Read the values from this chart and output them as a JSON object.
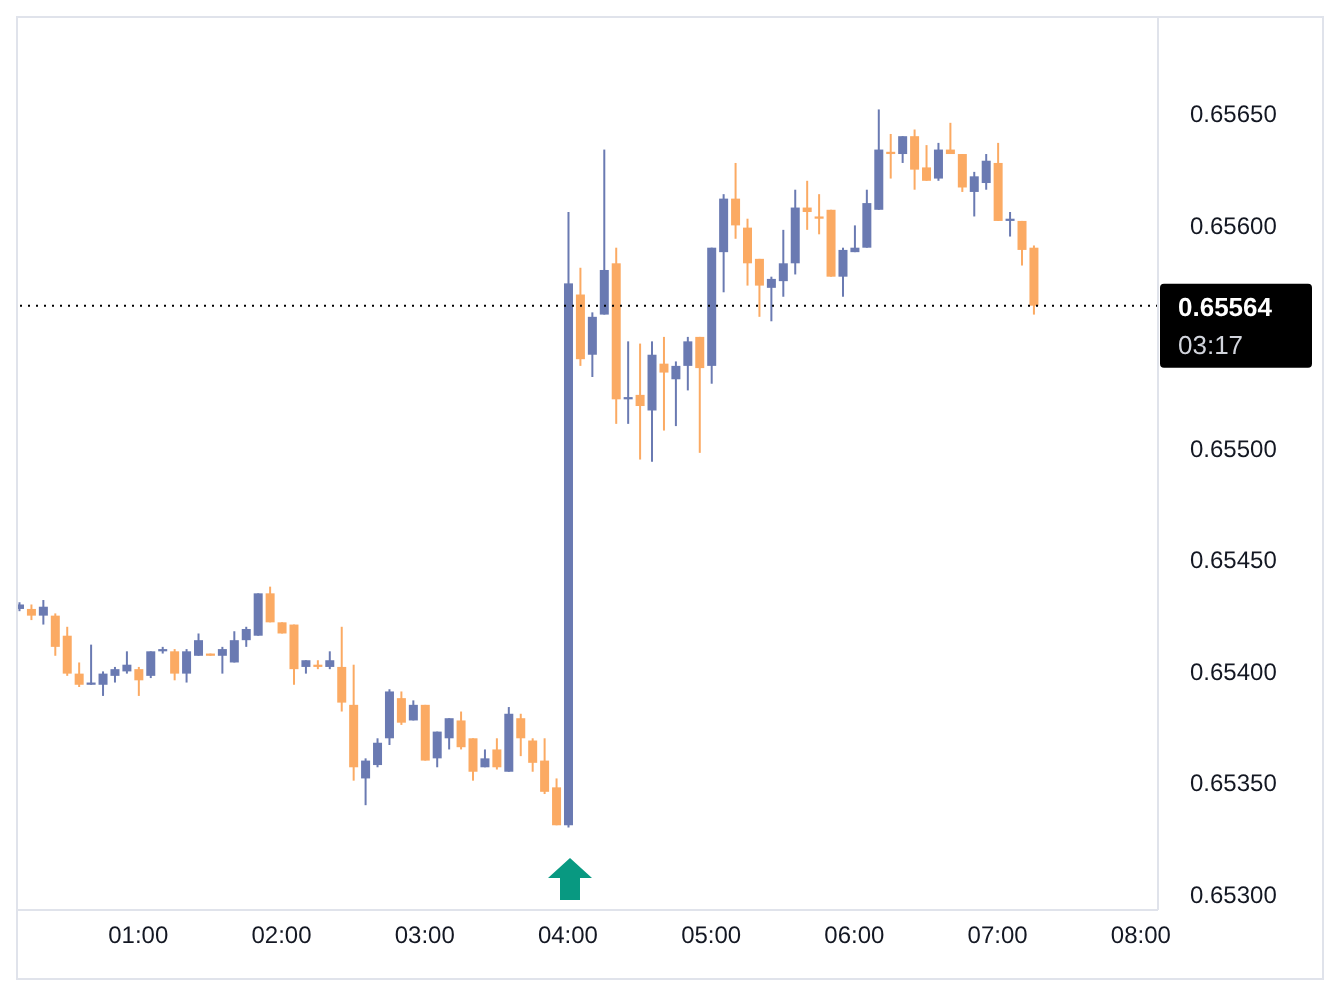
{
  "chart_data": {
    "type": "candlestick",
    "x": [
      0.1667,
      0.25,
      0.3333,
      0.4167,
      0.5,
      0.5833,
      0.6667,
      0.75,
      0.8333,
      0.9167,
      1,
      1.0833,
      1.1667,
      1.25,
      1.3333,
      1.4167,
      1.5,
      1.5833,
      1.6667,
      1.75,
      1.8333,
      1.9167,
      2,
      2.0833,
      2.1667,
      2.25,
      2.3333,
      2.4167,
      2.5,
      2.5833,
      2.6667,
      2.75,
      2.8333,
      2.9167,
      3,
      3.0833,
      3.1667,
      3.25,
      3.3333,
      3.4167,
      3.5,
      3.5833,
      3.6667,
      3.75,
      3.8333,
      3.9167,
      4,
      4.0833,
      4.1667,
      4.25,
      4.3333,
      4.4167,
      4.5,
      4.5833,
      4.6667,
      4.75,
      4.8333,
      4.9167,
      5,
      5.0833,
      5.1667,
      5.25,
      5.3333,
      5.4167,
      5.5,
      5.5833,
      5.6667,
      5.75,
      5.8333,
      5.9167,
      6,
      6.0833,
      6.1667,
      6.25,
      6.3333,
      6.4167,
      6.5,
      6.5833,
      6.6667,
      6.75,
      6.8333,
      6.9167,
      7,
      7.0833,
      7.1667,
      7.25
    ],
    "ohlc": [
      [
        0.65428,
        0.65431,
        0.65427,
        0.6543
      ],
      [
        0.65428,
        0.6543,
        0.65423,
        0.65425
      ],
      [
        0.65425,
        0.65432,
        0.65421,
        0.65429
      ],
      [
        0.65425,
        0.65426,
        0.65407,
        0.65411
      ],
      [
        0.65416,
        0.6542,
        0.65398,
        0.65399
      ],
      [
        0.65399,
        0.65404,
        0.65393,
        0.65394
      ],
      [
        0.65394,
        0.65412,
        0.65394,
        0.65395
      ],
      [
        0.65394,
        0.654,
        0.65389,
        0.65399
      ],
      [
        0.65398,
        0.65402,
        0.65395,
        0.65401
      ],
      [
        0.654,
        0.65409,
        0.65399,
        0.65403
      ],
      [
        0.65401,
        0.65402,
        0.65389,
        0.65396
      ],
      [
        0.65398,
        0.65409,
        0.65397,
        0.65409
      ],
      [
        0.65409,
        0.65411,
        0.65408,
        0.6541
      ],
      [
        0.65409,
        0.6541,
        0.65396,
        0.65399
      ],
      [
        0.65399,
        0.6541,
        0.65395,
        0.65409
      ],
      [
        0.65407,
        0.65417,
        0.65407,
        0.65414
      ],
      [
        0.65408,
        0.65408,
        0.65407,
        0.65407
      ],
      [
        0.65407,
        0.65411,
        0.65399,
        0.6541
      ],
      [
        0.65404,
        0.65418,
        0.65404,
        0.65414
      ],
      [
        0.65414,
        0.6542,
        0.65411,
        0.65419
      ],
      [
        0.65416,
        0.65435,
        0.65416,
        0.65435
      ],
      [
        0.65435,
        0.65438,
        0.65422,
        0.65422
      ],
      [
        0.65422,
        0.65422,
        0.65417,
        0.65417
      ],
      [
        0.65421,
        0.65421,
        0.65394,
        0.65401
      ],
      [
        0.65402,
        0.65405,
        0.65399,
        0.65405
      ],
      [
        0.65403,
        0.65405,
        0.65401,
        0.65402
      ],
      [
        0.65402,
        0.65409,
        0.65401,
        0.65405
      ],
      [
        0.65402,
        0.6542,
        0.65382,
        0.65386
      ],
      [
        0.65385,
        0.65403,
        0.65351,
        0.65357
      ],
      [
        0.65352,
        0.65361,
        0.6534,
        0.6536
      ],
      [
        0.65358,
        0.6537,
        0.65357,
        0.65368
      ],
      [
        0.6537,
        0.65392,
        0.65367,
        0.65391
      ],
      [
        0.65388,
        0.65391,
        0.65376,
        0.65377
      ],
      [
        0.65378,
        0.65387,
        0.65378,
        0.65385
      ],
      [
        0.65385,
        0.65385,
        0.6536,
        0.6536
      ],
      [
        0.65361,
        0.65373,
        0.65357,
        0.65373
      ],
      [
        0.6537,
        0.65379,
        0.65365,
        0.65379
      ],
      [
        0.65378,
        0.65382,
        0.65365,
        0.65366
      ],
      [
        0.6537,
        0.6537,
        0.65351,
        0.65355
      ],
      [
        0.65357,
        0.65365,
        0.65357,
        0.65361
      ],
      [
        0.65365,
        0.6537,
        0.65356,
        0.65357
      ],
      [
        0.65355,
        0.65384,
        0.65355,
        0.65381
      ],
      [
        0.65379,
        0.65381,
        0.65362,
        0.6537
      ],
      [
        0.65369,
        0.6537,
        0.65355,
        0.65359
      ],
      [
        0.6536,
        0.6537,
        0.65345,
        0.65346
      ],
      [
        0.65348,
        0.65352,
        0.65331,
        0.65331
      ],
      [
        0.65331,
        0.65606,
        0.6533,
        0.65574
      ],
      [
        0.65569,
        0.65581,
        0.65537,
        0.6554
      ],
      [
        0.65542,
        0.65561,
        0.65532,
        0.65559
      ],
      [
        0.6556,
        0.65634,
        0.6556,
        0.6558
      ],
      [
        0.65583,
        0.6559,
        0.65511,
        0.65522
      ],
      [
        0.65522,
        0.65548,
        0.65511,
        0.65523
      ],
      [
        0.65524,
        0.65547,
        0.65495,
        0.65519
      ],
      [
        0.65517,
        0.65548,
        0.65494,
        0.65542
      ],
      [
        0.65538,
        0.6555,
        0.65508,
        0.65534
      ],
      [
        0.65531,
        0.65539,
        0.6551,
        0.65537
      ],
      [
        0.65537,
        0.6555,
        0.65526,
        0.65548
      ],
      [
        0.6555,
        0.6555,
        0.65498,
        0.65536
      ],
      [
        0.65537,
        0.6559,
        0.65529,
        0.6559
      ],
      [
        0.65588,
        0.65614,
        0.6557,
        0.65612
      ],
      [
        0.65612,
        0.65628,
        0.65594,
        0.656
      ],
      [
        0.65599,
        0.65603,
        0.65573,
        0.65583
      ],
      [
        0.65585,
        0.65585,
        0.65559,
        0.65573
      ],
      [
        0.65572,
        0.65577,
        0.65557,
        0.65576
      ],
      [
        0.65575,
        0.65598,
        0.65568,
        0.65583
      ],
      [
        0.65583,
        0.65616,
        0.65578,
        0.65608
      ],
      [
        0.65608,
        0.6562,
        0.65598,
        0.65606
      ],
      [
        0.65604,
        0.65614,
        0.65596,
        0.65603
      ],
      [
        0.65607,
        0.65607,
        0.65577,
        0.65577
      ],
      [
        0.65577,
        0.6559,
        0.65568,
        0.65589
      ],
      [
        0.65588,
        0.656,
        0.65588,
        0.6559
      ],
      [
        0.6559,
        0.65616,
        0.6559,
        0.6561
      ],
      [
        0.65607,
        0.65652,
        0.65607,
        0.65634
      ],
      [
        0.65633,
        0.65641,
        0.65621,
        0.65632
      ],
      [
        0.65632,
        0.6564,
        0.65628,
        0.6564
      ],
      [
        0.6564,
        0.65643,
        0.65616,
        0.65625
      ],
      [
        0.65626,
        0.65636,
        0.6562,
        0.6562
      ],
      [
        0.65621,
        0.65637,
        0.6562,
        0.65634
      ],
      [
        0.65634,
        0.65646,
        0.65632,
        0.65632
      ],
      [
        0.65632,
        0.65632,
        0.65615,
        0.65617
      ],
      [
        0.65615,
        0.65624,
        0.65604,
        0.65622
      ],
      [
        0.65619,
        0.65632,
        0.65616,
        0.65629
      ],
      [
        0.65628,
        0.65637,
        0.65602,
        0.65602
      ],
      [
        0.65602,
        0.65606,
        0.65595,
        0.65603
      ],
      [
        0.65602,
        0.65602,
        0.65582,
        0.65589
      ],
      [
        0.6559,
        0.65591,
        0.6556,
        0.65564
      ]
    ],
    "colors": [
      "#6a7ab2",
      "#fbaa63",
      "#6a7ab2",
      "#fbaa63",
      "#fbaa63",
      "#fbaa63",
      "#6a7ab2",
      "#6a7ab2",
      "#6a7ab2",
      "#6a7ab2",
      "#fbaa63",
      "#6a7ab2",
      "#6a7ab2",
      "#fbaa63",
      "#6a7ab2",
      "#6a7ab2",
      "#fbaa63",
      "#6a7ab2",
      "#6a7ab2",
      "#6a7ab2",
      "#6a7ab2",
      "#fbaa63",
      "#fbaa63",
      "#fbaa63",
      "#6a7ab2",
      "#fbaa63",
      "#6a7ab2",
      "#fbaa63",
      "#fbaa63",
      "#6a7ab2",
      "#6a7ab2",
      "#6a7ab2",
      "#fbaa63",
      "#6a7ab2",
      "#fbaa63",
      "#6a7ab2",
      "#6a7ab2",
      "#fbaa63",
      "#fbaa63",
      "#6a7ab2",
      "#fbaa63",
      "#6a7ab2",
      "#fbaa63",
      "#fbaa63",
      "#fbaa63",
      "#fbaa63",
      "#6a7ab2",
      "#fbaa63",
      "#6a7ab2",
      "#6a7ab2",
      "#fbaa63",
      "#6a7ab2",
      "#fbaa63",
      "#6a7ab2",
      "#fbaa63",
      "#6a7ab2",
      "#6a7ab2",
      "#fbaa63",
      "#6a7ab2",
      "#6a7ab2",
      "#fbaa63",
      "#fbaa63",
      "#fbaa63",
      "#6a7ab2",
      "#6a7ab2",
      "#6a7ab2",
      "#fbaa63",
      "#fbaa63",
      "#fbaa63",
      "#6a7ab2",
      "#6a7ab2",
      "#6a7ab2",
      "#6a7ab2",
      "#fbaa63",
      "#6a7ab2",
      "#fbaa63",
      "#fbaa63",
      "#6a7ab2",
      "#fbaa63",
      "#fbaa63",
      "#6a7ab2",
      "#6a7ab2",
      "#fbaa63",
      "#6a7ab2",
      "#fbaa63",
      "#fbaa63"
    ],
    "xlim": [
      0.16,
      8.12
    ],
    "xticks": [
      {
        "value": 1,
        "label": "01:00"
      },
      {
        "value": 2,
        "label": "02:00"
      },
      {
        "value": 3,
        "label": "03:00"
      },
      {
        "value": 4,
        "label": "04:00"
      },
      {
        "value": 5,
        "label": "05:00"
      },
      {
        "value": 6,
        "label": "06:00"
      },
      {
        "value": 7,
        "label": "07:00"
      },
      {
        "value": 8,
        "label": "08:00"
      }
    ],
    "ylim": [
      0.65293,
      0.65693
    ],
    "yticks": [
      {
        "value": 0.653,
        "label": "0.65300"
      },
      {
        "value": 0.6535,
        "label": "0.65350"
      },
      {
        "value": 0.654,
        "label": "0.65400"
      },
      {
        "value": 0.6545,
        "label": "0.65450"
      },
      {
        "value": 0.655,
        "label": "0.65500"
      },
      {
        "value": 0.656,
        "label": "0.65600"
      },
      {
        "value": 0.6565,
        "label": "0.65650"
      }
    ],
    "ref_lines": [
      {
        "axis": "y",
        "value": 0.65564,
        "label": "0.65564",
        "color": "#000000",
        "line_style": "dotted"
      }
    ],
    "annotations": [
      "03:17"
    ]
  }
}
